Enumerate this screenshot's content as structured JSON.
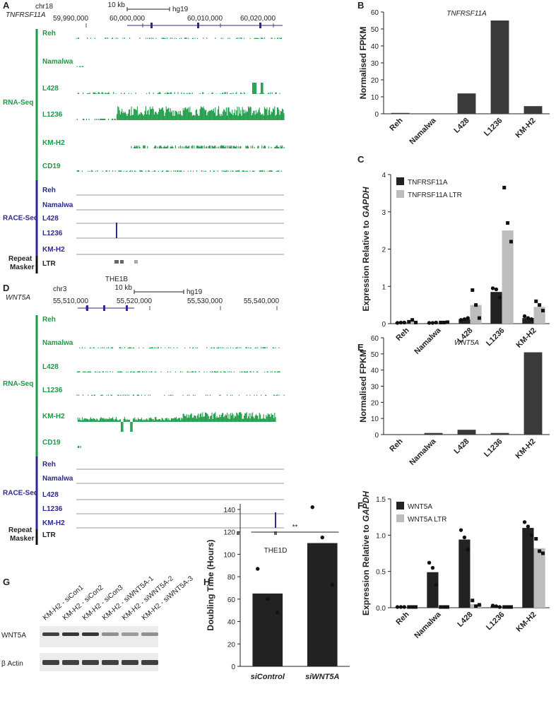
{
  "genome_panels": [
    {
      "panel": "A",
      "gene": "TNFRSF11A",
      "chr": "chr18",
      "scale": "10 kb",
      "assembly": "hg19",
      "coords": [
        "59,990,000",
        "60,000,000",
        "60,010,000",
        "60,020,000"
      ],
      "rna_label": "RNA-Seq",
      "rna_tracks": [
        "Reh",
        "Namalwa",
        "L428",
        "L1236",
        "KM-H2",
        "CD19"
      ],
      "race_label": "RACE-Seq",
      "race_tracks": [
        "Reh",
        "Namalwa",
        "L428",
        "L1236",
        "KM-H2"
      ],
      "repeat_label": [
        "Repeat",
        "Masker"
      ],
      "ltr": "LTR",
      "element": "THE1B"
    },
    {
      "panel": "D",
      "gene": "WNT5A",
      "chr": "chr3",
      "scale": "10 kb",
      "assembly": "hg19",
      "coords": [
        "55,510,000",
        "55,520,000",
        "55,530,000",
        "55,540,000"
      ],
      "rna_label": "RNA-Seq",
      "rna_tracks": [
        "Reh",
        "Namalwa",
        "L428",
        "L1236",
        "KM-H2",
        "CD19"
      ],
      "race_label": "RACE-Seq",
      "race_tracks": [
        "Reh",
        "Namalwa",
        "L428",
        "L1236",
        "KM-H2"
      ],
      "repeat_label": [
        "Repeat",
        "Masker"
      ],
      "ltr": "LTR",
      "element": "THE1D"
    }
  ],
  "western": {
    "panel": "G",
    "lanes": [
      "KM-H2 - siCon1",
      "KM-H2 - siCon2",
      "KM-H2 - siCon3",
      "KM-H2 - siWNT5A-1",
      "KM-H2 - siWNT5A-2",
      "KM-H2 - siWNT5A-3"
    ],
    "proteins": [
      "WNT5A",
      "β Actin"
    ]
  },
  "chart_data": [
    {
      "type": "bar",
      "panel": "B",
      "title": "TNFRSF11A",
      "ylabel": "Normalised FPKM",
      "categories": [
        "Reh",
        "Namalwa",
        "L428",
        "L1236",
        "KM-H2"
      ],
      "values": [
        0.5,
        0,
        12,
        55,
        4.5
      ],
      "color": "#3a3a3a",
      "ylim": [
        0,
        60
      ],
      "yticks": [
        0,
        10,
        20,
        30,
        40,
        50,
        60
      ],
      "xtick_rotation": -45
    },
    {
      "type": "bar",
      "panel": "C",
      "ylabel": "Expression Relative to",
      "ylabel_emph": "GAPDH",
      "categories": [
        "Reh",
        "Namalwa",
        "L428",
        "L1236",
        "KM-H2"
      ],
      "series": [
        {
          "name": "TNFRSF11A",
          "color": "#222222",
          "marker": "circle",
          "values": [
            0.03,
            0.02,
            0.12,
            0.85,
            0.15
          ],
          "points": [
            [
              0.02,
              0.03,
              0.03
            ],
            [
              0.02,
              0.02,
              0.03
            ],
            [
              0.1,
              0.12,
              0.15
            ],
            [
              0.95,
              0.92,
              0.7
            ],
            [
              0.2,
              0.15,
              0.12
            ]
          ]
        },
        {
          "name": "TNFRSF11A LTR",
          "color": "#bdbdbd",
          "marker": "square",
          "values": [
            0.05,
            0.03,
            0.5,
            2.5,
            0.45
          ],
          "points": [
            [
              0.05,
              0.1,
              0.03
            ],
            [
              0.03,
              0.03,
              0.04
            ],
            [
              0.9,
              0.5,
              0.15
            ],
            [
              3.65,
              2.7,
              2.2
            ],
            [
              0.6,
              0.5,
              0.35
            ]
          ]
        }
      ],
      "ylim": [
        0,
        4
      ],
      "yticks": [
        0,
        1,
        2,
        3,
        4
      ],
      "legend": "upper left",
      "xtick_rotation": -45
    },
    {
      "type": "bar",
      "panel": "E",
      "title": "WNT5A",
      "ylabel": "Normalised FPKM",
      "categories": [
        "Reh",
        "Namalwa",
        "L428",
        "L1236",
        "KM-H2"
      ],
      "values": [
        0,
        1,
        3,
        1,
        51
      ],
      "color": "#3a3a3a",
      "ylim": [
        0,
        60
      ],
      "yticks": [
        0,
        10,
        20,
        30,
        40,
        50,
        60
      ],
      "xtick_rotation": -45
    },
    {
      "type": "bar",
      "panel": "F",
      "ylabel": "Expression Relative to",
      "ylabel_emph": "GAPDH",
      "categories": [
        "Reh",
        "Namalwa",
        "L428",
        "L1236",
        "KM-H2"
      ],
      "series": [
        {
          "name": "WNT5A",
          "color": "#222222",
          "marker": "circle",
          "values": [
            0.01,
            0.49,
            0.94,
            0.02,
            1.1
          ],
          "points": [
            [
              0.01,
              0.01,
              0.01
            ],
            [
              0.62,
              0.55,
              0.32
            ],
            [
              1.07,
              0.97,
              0.8
            ],
            [
              0.03,
              0.02,
              0.01
            ],
            [
              1.18,
              1.12,
              1.0
            ]
          ]
        },
        {
          "name": "WNT5A LTR",
          "color": "#bdbdbd",
          "marker": "square",
          "values": [
            0.01,
            0.01,
            0.05,
            0.01,
            0.82
          ],
          "points": [
            [
              0.01,
              0.01,
              0.01
            ],
            [
              0.01,
              0.01,
              0.01
            ],
            [
              0.1,
              0.02,
              0.04
            ],
            [
              0.01,
              0.01,
              0.01
            ],
            [
              0.95,
              0.78,
              0.75
            ]
          ]
        }
      ],
      "ylim": [
        0,
        1.5
      ],
      "yticks": [
        {
          "value": 0,
          "label": "0.0"
        },
        0.5,
        {
          "value": 1,
          "label": "1.0"
        },
        1.5
      ],
      "legend": "upper left",
      "xtick_rotation": -45
    },
    {
      "type": "bar",
      "panel": "H",
      "ylabel": "Doubling Time (Hours)",
      "categories": [
        "siControl",
        "siWNT5A"
      ],
      "values": [
        65,
        110
      ],
      "color": "#222222",
      "marker": "circle",
      "points": [
        [
          87,
          60,
          48
        ],
        [
          142,
          115,
          73
        ]
      ],
      "annotation": "**",
      "ylim": [
        0,
        145
      ],
      "yticks": [
        0,
        20,
        40,
        60,
        80,
        100,
        120,
        140
      ],
      "xtick_rotation": 0
    }
  ]
}
